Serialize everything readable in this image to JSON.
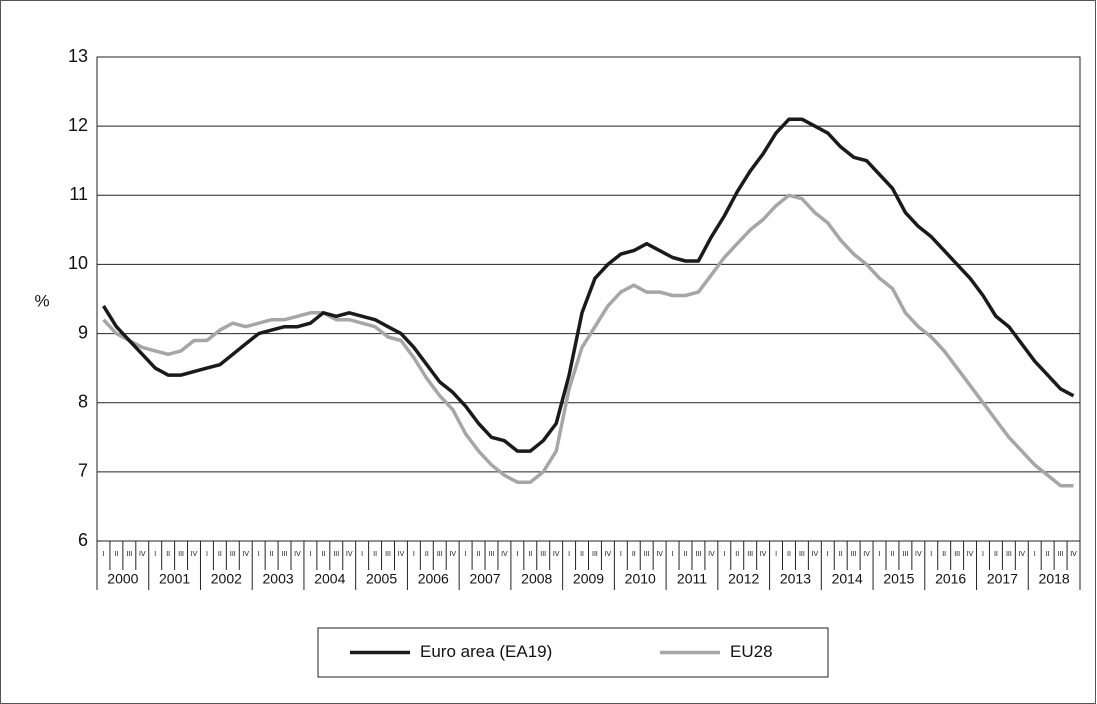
{
  "chart_data": {
    "type": "line",
    "ylabel": "%",
    "ylim": [
      6,
      13
    ],
    "yticks": [
      6,
      7,
      8,
      9,
      10,
      11,
      12,
      13
    ],
    "grid": true,
    "categories": [
      "I",
      "II",
      "III",
      "IV",
      "I",
      "II",
      "III",
      "IV",
      "I",
      "II",
      "III",
      "IV",
      "I",
      "II",
      "III",
      "IV",
      "I",
      "II",
      "III",
      "IV",
      "I",
      "II",
      "III",
      "IV",
      "I",
      "II",
      "III",
      "IV",
      "I",
      "II",
      "III",
      "IV",
      "I",
      "II",
      "III",
      "IV",
      "I",
      "II",
      "III",
      "IV",
      "I",
      "II",
      "III",
      "IV",
      "I",
      "II",
      "III",
      "IV",
      "I",
      "II",
      "III",
      "IV",
      "I",
      "II",
      "III",
      "IV",
      "I",
      "II",
      "III",
      "IV",
      "I",
      "II",
      "III",
      "IV",
      "I",
      "II",
      "III",
      "IV",
      "I",
      "II",
      "III",
      "IV",
      "I",
      "II",
      "III",
      "IV"
    ],
    "years": [
      2000,
      2001,
      2002,
      2003,
      2004,
      2005,
      2006,
      2007,
      2008,
      2009,
      2010,
      2011,
      2012,
      2013,
      2014,
      2015,
      2016,
      2017,
      2018
    ],
    "legend": "bottom",
    "series": [
      {
        "name": "Euro area (EA19)",
        "color": "#1a1a1a",
        "values": [
          9.4,
          9.1,
          8.9,
          8.7,
          8.5,
          8.4,
          8.4,
          8.45,
          8.5,
          8.55,
          8.7,
          8.85,
          9.0,
          9.05,
          9.1,
          9.1,
          9.15,
          9.3,
          9.25,
          9.3,
          9.25,
          9.2,
          9.1,
          9.0,
          8.8,
          8.55,
          8.3,
          8.15,
          7.95,
          7.7,
          7.5,
          7.45,
          7.3,
          7.3,
          7.45,
          7.7,
          8.4,
          9.3,
          9.8,
          10.0,
          10.15,
          10.2,
          10.3,
          10.2,
          10.1,
          10.05,
          10.05,
          10.4,
          10.7,
          11.05,
          11.35,
          11.6,
          11.9,
          12.1,
          12.1,
          12.0,
          11.9,
          11.7,
          11.55,
          11.5,
          11.3,
          11.1,
          10.75,
          10.55,
          10.4,
          10.2,
          10.0,
          9.8,
          9.55,
          9.25,
          9.1,
          8.85,
          8.6,
          8.4,
          8.2,
          8.1
        ]
      },
      {
        "name": "EU28",
        "color": "#a6a6a6",
        "values": [
          9.2,
          9.0,
          8.9,
          8.8,
          8.75,
          8.7,
          8.75,
          8.9,
          8.9,
          9.05,
          9.15,
          9.1,
          9.15,
          9.2,
          9.2,
          9.25,
          9.3,
          9.3,
          9.2,
          9.2,
          9.15,
          9.1,
          8.95,
          8.9,
          8.65,
          8.35,
          8.1,
          7.9,
          7.55,
          7.3,
          7.1,
          6.95,
          6.85,
          6.85,
          7.0,
          7.3,
          8.2,
          8.8,
          9.1,
          9.4,
          9.6,
          9.7,
          9.6,
          9.6,
          9.55,
          9.55,
          9.6,
          9.85,
          10.1,
          10.3,
          10.5,
          10.65,
          10.85,
          11.0,
          10.95,
          10.75,
          10.6,
          10.35,
          10.15,
          10.0,
          9.8,
          9.65,
          9.3,
          9.1,
          8.95,
          8.75,
          8.5,
          8.25,
          8.0,
          7.75,
          7.5,
          7.3,
          7.1,
          6.95,
          6.8,
          6.8
        ]
      }
    ]
  }
}
